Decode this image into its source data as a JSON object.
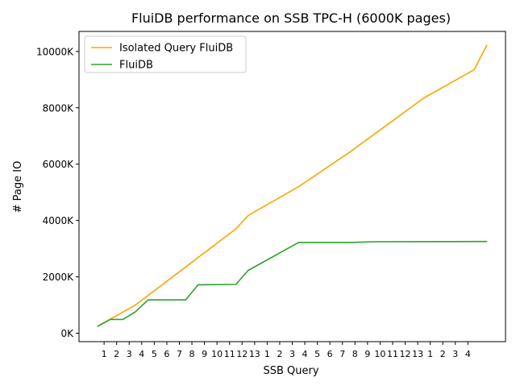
{
  "chart_data": {
    "type": "line",
    "title": "FluiDB performance on SSB TPC-H (6000K  pages)",
    "xlabel": "SSB Query",
    "ylabel": "# Page IO",
    "x_tick_labels": [
      "1",
      "2",
      "3",
      "4",
      "5",
      "6",
      "7",
      "8",
      "9",
      "10",
      "11",
      "12",
      "13",
      "1",
      "2",
      "3",
      "4",
      "5",
      "6",
      "7",
      "8",
      "9",
      "10",
      "11",
      "12",
      "13",
      "1",
      "2",
      "3",
      "4"
    ],
    "ylim_k": [
      -300,
      10710
    ],
    "y_ticks": [
      {
        "value": 0,
        "label": "0K"
      },
      {
        "value": 2000,
        "label": "2000K"
      },
      {
        "value": 4000,
        "label": "4000K"
      },
      {
        "value": 6000,
        "label": "6000K"
      },
      {
        "value": 8000,
        "label": "8000K"
      },
      {
        "value": 10000,
        "label": "10000K"
      }
    ],
    "series": [
      {
        "name": "Isolated Query FluiDB",
        "color": "#ffa500",
        "points": [
          [
            -0.5,
            250
          ],
          [
            0.5,
            500
          ],
          [
            2.5,
            1000
          ],
          [
            6.5,
            2350
          ],
          [
            10.5,
            3700
          ],
          [
            11.5,
            4180
          ],
          [
            15.5,
            5200
          ],
          [
            19.5,
            6400
          ],
          [
            25.5,
            8350
          ],
          [
            29.5,
            9350
          ],
          [
            30.5,
            10220
          ]
        ]
      },
      {
        "name": "FluiDB",
        "color": "#2ca02c",
        "points": [
          [
            -0.5,
            250
          ],
          [
            0.5,
            490
          ],
          [
            1.5,
            490
          ],
          [
            2.5,
            760
          ],
          [
            3.5,
            1180
          ],
          [
            6.5,
            1180
          ],
          [
            7.5,
            1720
          ],
          [
            10.5,
            1730
          ],
          [
            11.5,
            2230
          ],
          [
            15.5,
            3220
          ],
          [
            19.5,
            3220
          ],
          [
            21.5,
            3245
          ],
          [
            30.5,
            3255
          ]
        ]
      }
    ],
    "legend": "top-left",
    "grid": false
  }
}
